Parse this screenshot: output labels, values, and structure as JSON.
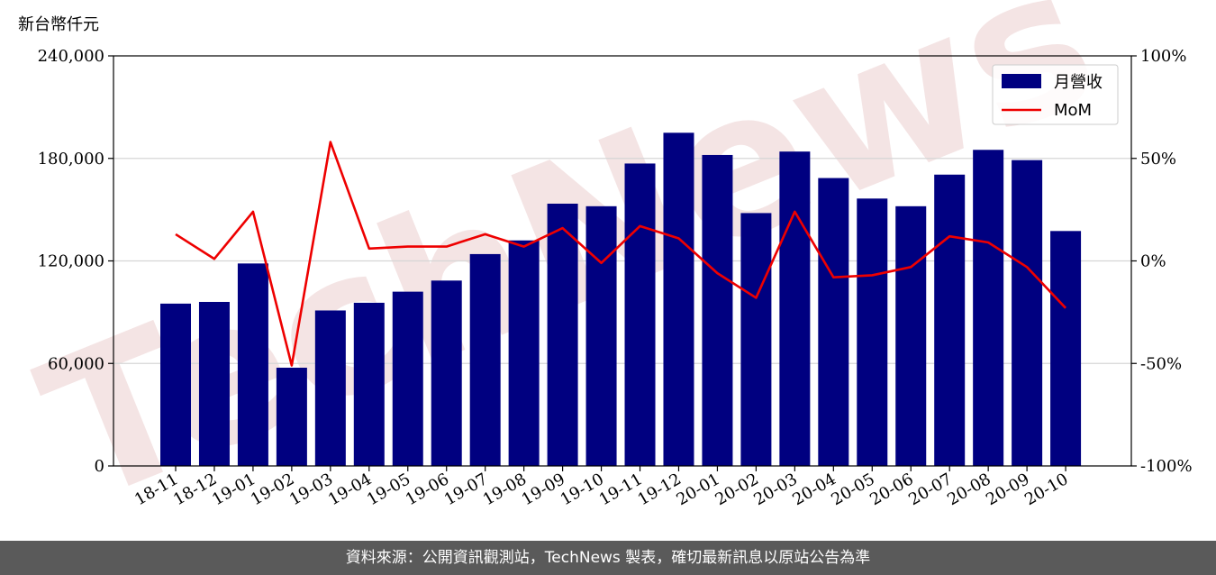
{
  "chart_data": {
    "type": "bar",
    "unit_label": "新台幣仟元",
    "categories": [
      "18-11",
      "18-12",
      "19-01",
      "19-02",
      "19-03",
      "19-04",
      "19-05",
      "19-06",
      "19-07",
      "19-08",
      "19-09",
      "19-10",
      "19-11",
      "19-12",
      "20-01",
      "20-02",
      "20-03",
      "20-04",
      "20-05",
      "20-06",
      "20-07",
      "20-08",
      "20-09",
      "20-10"
    ],
    "series": [
      {
        "name": "月營收",
        "type": "bar",
        "axis": "left",
        "color": "#000080",
        "values": [
          95000,
          96000,
          118500,
          57500,
          91000,
          95500,
          102000,
          108500,
          124000,
          132000,
          153500,
          152000,
          177000,
          195000,
          182000,
          148000,
          184000,
          168500,
          156500,
          152000,
          170500,
          185000,
          179000,
          137500
        ]
      },
      {
        "name": "MoM",
        "type": "line",
        "axis": "right",
        "color": "#ee0000",
        "values": [
          13,
          1,
          24,
          -51,
          58,
          6,
          7,
          7,
          13,
          7,
          16,
          -1,
          17,
          11,
          -6,
          -18,
          24,
          -8,
          -7,
          -3,
          12,
          9,
          -3,
          -23
        ]
      }
    ],
    "y_left": {
      "min": 0,
      "max": 240000,
      "ticks": [
        "0",
        "60,000",
        "120,000",
        "180,000",
        "240,000"
      ],
      "tick_values": [
        0,
        60000,
        120000,
        180000,
        240000
      ]
    },
    "y_right": {
      "min": -100,
      "max": 100,
      "ticks": [
        "-100%",
        "-50%",
        "0%",
        "50%",
        "100%"
      ],
      "tick_values": [
        -100,
        -50,
        0,
        50,
        100
      ]
    },
    "grid": "horizontal",
    "legend_position": "top-right",
    "watermark": "TechNews"
  },
  "footer": {
    "text": "資料來源：公開資訊觀測站，TechNews 製表，確切最新訊息以原站公告為準"
  }
}
